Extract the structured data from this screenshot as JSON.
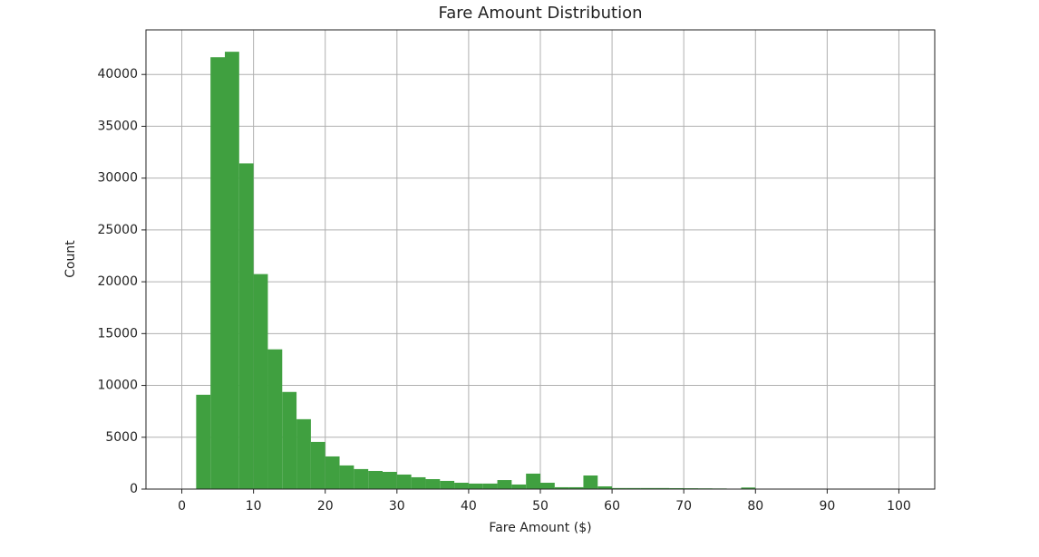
{
  "chart_data": {
    "type": "histogram",
    "title": "Fare Amount Distribution",
    "x_label": "Fare Amount ($)",
    "y_label": "Count",
    "bins": [
      0,
      2,
      4,
      6,
      8,
      10,
      12,
      14,
      16,
      18,
      20,
      22,
      24,
      26,
      28,
      30,
      32,
      34,
      36,
      38,
      40,
      42,
      44,
      46,
      48,
      50,
      52,
      54,
      56,
      58,
      60,
      62,
      64,
      66,
      68,
      70,
      72,
      74,
      76,
      78,
      80,
      82,
      84,
      86,
      88,
      90,
      92,
      94,
      96,
      98,
      100
    ],
    "values": [
      0,
      9100,
      41660,
      42190,
      31420,
      20740,
      13480,
      9370,
      6740,
      4550,
      3150,
      2280,
      1930,
      1750,
      1660,
      1400,
      1140,
      960,
      790,
      610,
      530,
      530,
      870,
      440,
      1490,
      610,
      180,
      180,
      1310,
      260,
      100,
      100,
      100,
      100,
      90,
      80,
      70,
      60,
      20,
      150,
      20,
      10,
      10,
      5,
      5,
      5,
      5,
      5,
      0,
      0
    ],
    "color": "#40a040",
    "xlim": [
      -5,
      105
    ],
    "xticks": [
      0,
      10,
      20,
      30,
      40,
      50,
      60,
      70,
      80,
      90,
      100
    ],
    "ylim": [
      0,
      44300
    ],
    "yticks": [
      0,
      5000,
      10000,
      15000,
      20000,
      25000,
      30000,
      35000,
      40000
    ],
    "grid": true
  }
}
